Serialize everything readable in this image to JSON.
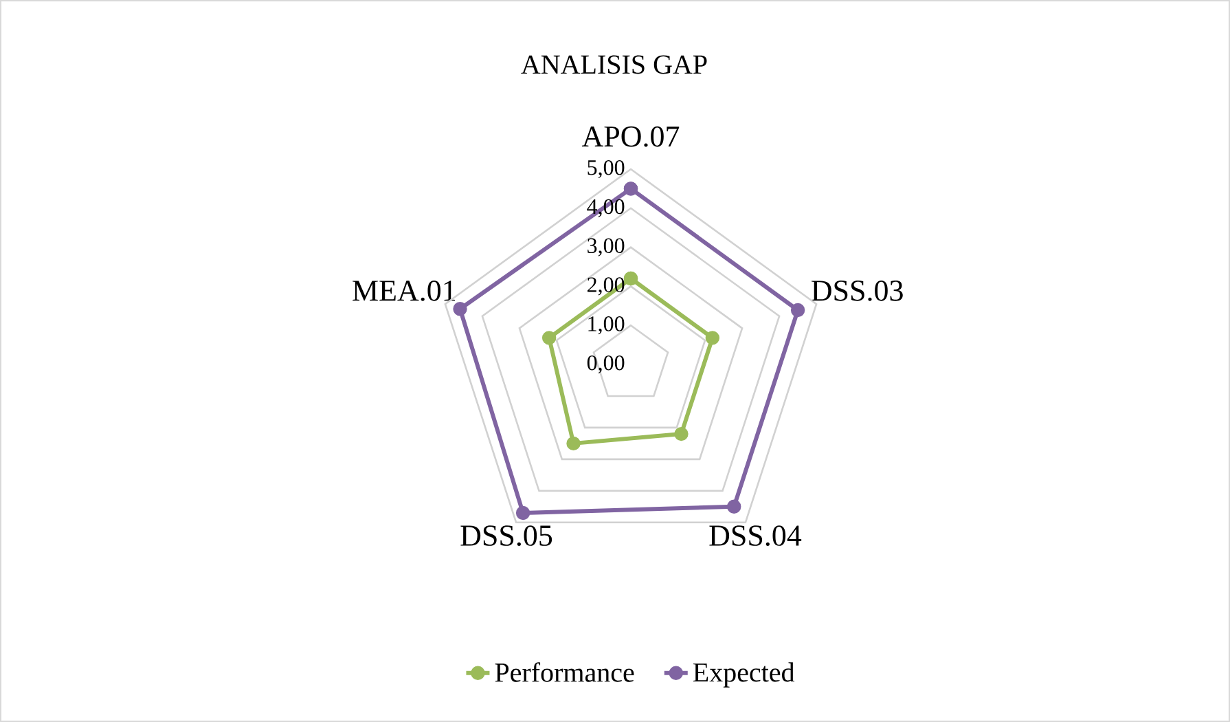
{
  "chart_data": {
    "type": "radar",
    "title": "ANALISIS GAP",
    "categories": [
      "APO.07",
      "DSS.03",
      "DSS.04",
      "DSS.05",
      "MEA.01"
    ],
    "series": [
      {
        "name": "Performance",
        "color": "#9bbb59",
        "values": [
          2.2,
          2.2,
          2.2,
          2.5,
          2.2
        ]
      },
      {
        "name": "Expected",
        "color": "#8064a2",
        "values": [
          4.5,
          4.5,
          4.5,
          4.7,
          4.6
        ]
      }
    ],
    "ylim": [
      0,
      5
    ],
    "yticks": [
      {
        "value": 0,
        "label": "0,00"
      },
      {
        "value": 1,
        "label": "1,00"
      },
      {
        "value": 2,
        "label": "2,00"
      },
      {
        "value": 3,
        "label": "3,00"
      },
      {
        "value": 4,
        "label": "4,00"
      },
      {
        "value": 5,
        "label": "5,00"
      }
    ],
    "grid": true,
    "legend": "bottom",
    "marker": "circle",
    "line_style": "solid"
  }
}
